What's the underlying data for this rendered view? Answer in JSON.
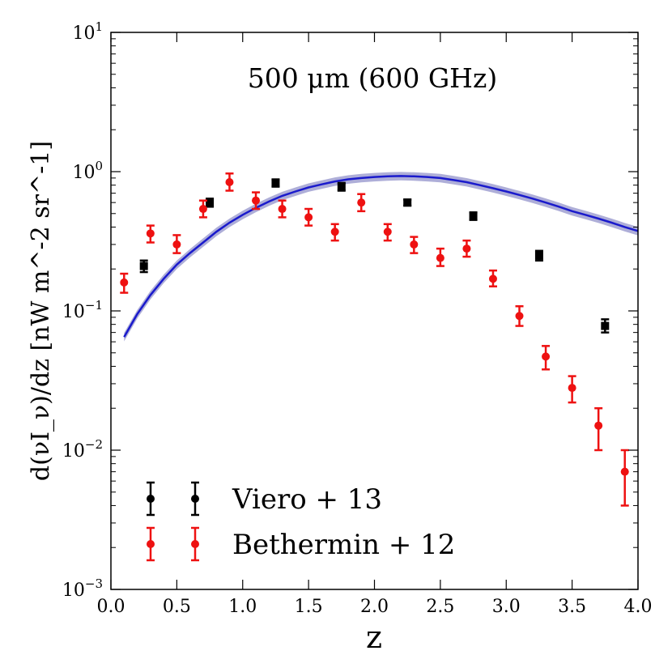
{
  "chart_data": {
    "type": "scatter",
    "title": "500 μm (600 GHz)",
    "xlabel": "z",
    "ylabel": "d(νI_ν)/dz [nW m^-2 sr^-1]",
    "xscale": "linear",
    "yscale": "log",
    "xlim": [
      0.0,
      4.0
    ],
    "ylim": [
      0.001,
      10
    ],
    "x_ticks": [
      0.0,
      0.5,
      1.0,
      1.5,
      2.0,
      2.5,
      3.0,
      3.5,
      4.0
    ],
    "x_tick_labels": [
      "0.0",
      "0.5",
      "1.0",
      "1.5",
      "2.0",
      "2.5",
      "3.0",
      "3.5",
      "4.0"
    ],
    "y_ticks": [
      {
        "value": 0.001,
        "base": "10",
        "exp": "−3"
      },
      {
        "value": 0.01,
        "base": "10",
        "exp": "−2"
      },
      {
        "value": 0.1,
        "base": "10",
        "exp": "−1"
      },
      {
        "value": 1,
        "base": "10",
        "exp": "0"
      },
      {
        "value": 10,
        "base": "10",
        "exp": "1"
      }
    ],
    "model_curve": {
      "name": "model",
      "color": "#1a1acc",
      "band_color": "#8c8cc8",
      "x": [
        0.1,
        0.2,
        0.3,
        0.4,
        0.5,
        0.6,
        0.7,
        0.8,
        0.9,
        1.0,
        1.1,
        1.2,
        1.3,
        1.4,
        1.5,
        1.6,
        1.7,
        1.8,
        1.9,
        2.0,
        2.1,
        2.2,
        2.3,
        2.4,
        2.5,
        2.6,
        2.7,
        2.8,
        2.9,
        3.0,
        3.1,
        3.2,
        3.3,
        3.4,
        3.5,
        3.6,
        3.7,
        3.8,
        3.9,
        4.0
      ],
      "y": [
        0.065,
        0.095,
        0.13,
        0.17,
        0.215,
        0.26,
        0.31,
        0.37,
        0.43,
        0.49,
        0.55,
        0.61,
        0.67,
        0.72,
        0.77,
        0.81,
        0.85,
        0.88,
        0.9,
        0.915,
        0.925,
        0.93,
        0.925,
        0.915,
        0.9,
        0.87,
        0.84,
        0.8,
        0.76,
        0.72,
        0.68,
        0.64,
        0.6,
        0.56,
        0.52,
        0.49,
        0.46,
        0.43,
        0.4,
        0.375
      ],
      "band_frac": 0.07
    },
    "series": [
      {
        "name": "Viero + 13",
        "color": "#000000",
        "marker": "square",
        "points": [
          {
            "x": 0.25,
            "y": 0.21,
            "lo": 0.19,
            "hi": 0.23
          },
          {
            "x": 0.75,
            "y": 0.6,
            "lo": 0.56,
            "hi": 0.64
          },
          {
            "x": 1.25,
            "y": 0.83,
            "lo": 0.78,
            "hi": 0.88
          },
          {
            "x": 1.75,
            "y": 0.78,
            "lo": 0.73,
            "hi": 0.83
          },
          {
            "x": 2.25,
            "y": 0.6,
            "lo": 0.57,
            "hi": 0.63
          },
          {
            "x": 2.75,
            "y": 0.48,
            "lo": 0.45,
            "hi": 0.51
          },
          {
            "x": 3.25,
            "y": 0.25,
            "lo": 0.23,
            "hi": 0.27
          },
          {
            "x": 3.75,
            "y": 0.078,
            "lo": 0.07,
            "hi": 0.087
          }
        ]
      },
      {
        "name": "Bethermin + 12",
        "color": "#ee1111",
        "marker": "circle",
        "points": [
          {
            "x": 0.1,
            "y": 0.16,
            "lo": 0.135,
            "hi": 0.185
          },
          {
            "x": 0.3,
            "y": 0.36,
            "lo": 0.31,
            "hi": 0.41
          },
          {
            "x": 0.5,
            "y": 0.3,
            "lo": 0.26,
            "hi": 0.35
          },
          {
            "x": 0.7,
            "y": 0.54,
            "lo": 0.47,
            "hi": 0.62
          },
          {
            "x": 0.9,
            "y": 0.84,
            "lo": 0.73,
            "hi": 0.97
          },
          {
            "x": 1.1,
            "y": 0.62,
            "lo": 0.54,
            "hi": 0.71
          },
          {
            "x": 1.3,
            "y": 0.54,
            "lo": 0.47,
            "hi": 0.62
          },
          {
            "x": 1.5,
            "y": 0.47,
            "lo": 0.41,
            "hi": 0.54
          },
          {
            "x": 1.7,
            "y": 0.37,
            "lo": 0.32,
            "hi": 0.42
          },
          {
            "x": 1.9,
            "y": 0.6,
            "lo": 0.52,
            "hi": 0.69
          },
          {
            "x": 2.1,
            "y": 0.37,
            "lo": 0.32,
            "hi": 0.42
          },
          {
            "x": 2.3,
            "y": 0.3,
            "lo": 0.26,
            "hi": 0.34
          },
          {
            "x": 2.5,
            "y": 0.24,
            "lo": 0.21,
            "hi": 0.28
          },
          {
            "x": 2.7,
            "y": 0.28,
            "lo": 0.245,
            "hi": 0.32
          },
          {
            "x": 2.9,
            "y": 0.17,
            "lo": 0.15,
            "hi": 0.195
          },
          {
            "x": 3.1,
            "y": 0.092,
            "lo": 0.078,
            "hi": 0.108
          },
          {
            "x": 3.3,
            "y": 0.047,
            "lo": 0.038,
            "hi": 0.056
          },
          {
            "x": 3.5,
            "y": 0.028,
            "lo": 0.022,
            "hi": 0.034
          },
          {
            "x": 3.7,
            "y": 0.015,
            "lo": 0.01,
            "hi": 0.02
          },
          {
            "x": 3.9,
            "y": 0.007,
            "lo": 0.004,
            "hi": 0.01
          }
        ]
      }
    ],
    "legend": {
      "position": "bottom-left",
      "entries": [
        "Viero + 13",
        "Bethermin + 12"
      ]
    }
  }
}
